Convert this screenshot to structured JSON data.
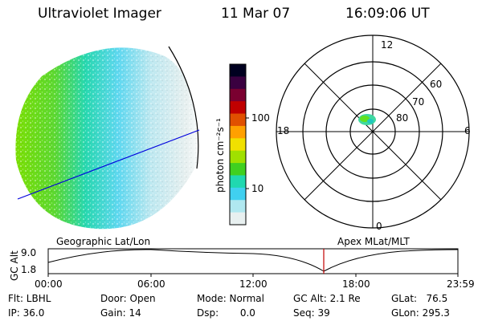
{
  "header": {
    "instrument": "Ultraviolet Imager",
    "date": "11 Mar 07",
    "time": "16:09:06 UT"
  },
  "colorbar": {
    "unit_label": "photon cm⁻²s⁻¹",
    "ticks": [
      "100",
      "10"
    ],
    "colors": [
      "#000020",
      "#3a0040",
      "#7a0030",
      "#c00000",
      "#e05000",
      "#ffa000",
      "#f0e000",
      "#a0e000",
      "#40d020",
      "#20d8b0",
      "#40d0f0",
      "#b0e8f0",
      "#e8f0f0"
    ]
  },
  "polar_plot": {
    "mlt_labels": {
      "top": "12",
      "left": "18",
      "right": "6",
      "bottom": "0"
    },
    "lat_labels": [
      "60",
      "70",
      "80"
    ]
  },
  "timeline": {
    "left_title": "Geographic Lat/Lon",
    "right_title": "Apex MLat/MLT",
    "y_axis_label": "GC Alt",
    "y_ticks": [
      "9.0",
      "1.8"
    ],
    "x_ticks": [
      "00:00",
      "06:00",
      "12:00",
      "18:00",
      "23:59"
    ],
    "current_marker_color": "#c00000"
  },
  "info": {
    "filter": "Flt: LBHL",
    "ip": "IP: 36.0",
    "door": "Door: Open",
    "gain": "Gain: 14",
    "mode": "Mode: Normal",
    "dsp": "Dsp:       0.0",
    "gc_alt": "GC Alt: 2.1 Re",
    "seq": "Seq: 39",
    "glat": "GLat:   76.5",
    "glon": "GLon: 295.3"
  }
}
